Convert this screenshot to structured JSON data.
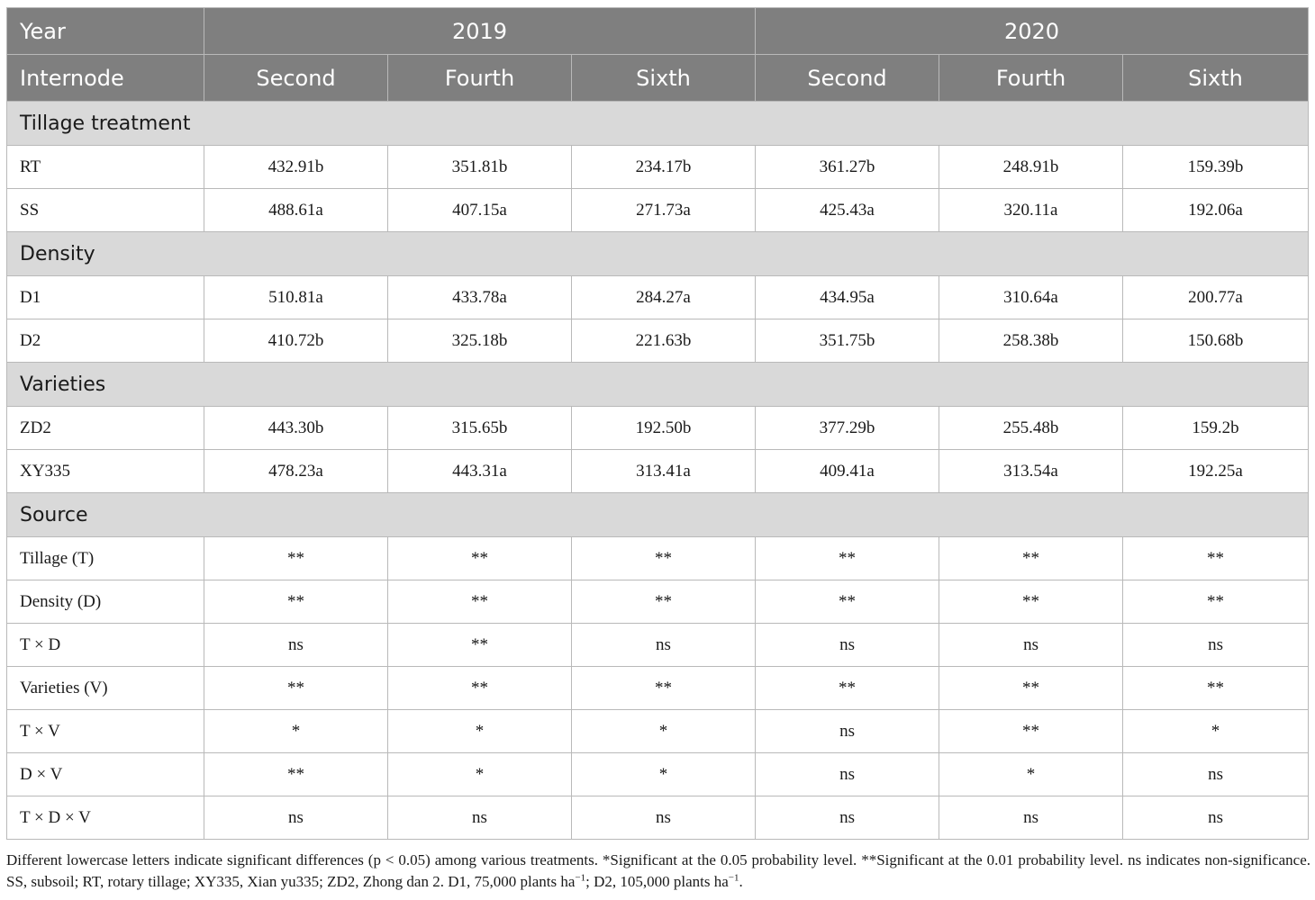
{
  "header": {
    "year_label": "Year",
    "years": [
      "2019",
      "2020"
    ],
    "internode_label": "Internode",
    "internodes": [
      "Second",
      "Fourth",
      "Sixth",
      "Second",
      "Fourth",
      "Sixth"
    ]
  },
  "sections": [
    {
      "title": "Tillage treatment",
      "rows": [
        {
          "label": "RT",
          "values": [
            "432.91b",
            "351.81b",
            "234.17b",
            "361.27b",
            "248.91b",
            "159.39b"
          ]
        },
        {
          "label": "SS",
          "values": [
            "488.61a",
            "407.15a",
            "271.73a",
            "425.43a",
            "320.11a",
            "192.06a"
          ]
        }
      ]
    },
    {
      "title": "Density",
      "rows": [
        {
          "label": "D1",
          "values": [
            "510.81a",
            "433.78a",
            "284.27a",
            "434.95a",
            "310.64a",
            "200.77a"
          ]
        },
        {
          "label": "D2",
          "values": [
            "410.72b",
            "325.18b",
            "221.63b",
            "351.75b",
            "258.38b",
            "150.68b"
          ]
        }
      ]
    },
    {
      "title": "Varieties",
      "rows": [
        {
          "label": "ZD2",
          "values": [
            "443.30b",
            "315.65b",
            "192.50b",
            "377.29b",
            "255.48b",
            "159.2b"
          ]
        },
        {
          "label": "XY335",
          "values": [
            "478.23a",
            "443.31a",
            "313.41a",
            "409.41a",
            "313.54a",
            "192.25a"
          ]
        }
      ]
    },
    {
      "title": "Source",
      "rows": [
        {
          "label": "Tillage (T)",
          "values": [
            "**",
            "**",
            "**",
            "**",
            "**",
            "**"
          ]
        },
        {
          "label": "Density (D)",
          "values": [
            "**",
            "**",
            "**",
            "**",
            "**",
            "**"
          ]
        },
        {
          "label": "T × D",
          "values": [
            "ns",
            "**",
            "ns",
            "ns",
            "ns",
            "ns"
          ]
        },
        {
          "label": "Varieties (V)",
          "values": [
            "**",
            "**",
            "**",
            "**",
            "**",
            "**"
          ]
        },
        {
          "label": "T × V",
          "values": [
            "*",
            "*",
            "*",
            "ns",
            "**",
            "*"
          ]
        },
        {
          "label": "D × V",
          "values": [
            "**",
            "*",
            "*",
            "ns",
            "*",
            "ns"
          ]
        },
        {
          "label": "T × D × V",
          "values": [
            "ns",
            "ns",
            "ns",
            "ns",
            "ns",
            "ns"
          ]
        }
      ]
    }
  ],
  "footnote": {
    "main": "Different lowercase letters indicate significant differences (p < 0.05) among various treatments. *Significant at the 0.05 probability level. **Significant at the 0.01 probability level. ns indicates non-significance. SS, subsoil; RT, rotary tillage; XY335, Xian yu335; ZD2, Zhong dan 2. D1, 75,000 plants ha",
    "sup1": "−1",
    "mid": "; D2, 105,000 plants ha",
    "sup2": "−1",
    "end": "."
  },
  "colors": {
    "header_bg": "#7f7f7f",
    "section_bg": "#d9d9d9",
    "border": "#b9b9b9"
  }
}
